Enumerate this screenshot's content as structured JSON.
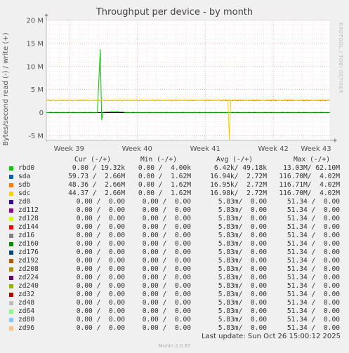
{
  "chart_data": {
    "type": "line",
    "title": "Throughput per device - by month",
    "ylabel": "Bytes/second read (-) / write (+)",
    "ylim": [
      -6000000,
      20000000
    ],
    "y_ticks": [
      "20 M",
      "15 M",
      "10 M",
      "5 M",
      "0",
      "-5 M"
    ],
    "y_tick_values": [
      20000000,
      15000000,
      10000000,
      5000000,
      0,
      -5000000
    ],
    "x_ticks": [
      "Week 39",
      "Week 40",
      "Week 41",
      "Week 42",
      "Week 43"
    ],
    "x_tick_positions": [
      0.08,
      0.32,
      0.56,
      0.8,
      1.04
    ],
    "series": [
      {
        "name": "rbd0",
        "color": "#00cc00",
        "profile": [
          [
            0.0,
            50000.0
          ],
          [
            0.18,
            50000.0
          ],
          [
            0.19,
            13800000.0
          ],
          [
            0.195,
            -1600000.0
          ],
          [
            0.2,
            100000.0
          ],
          [
            0.25,
            300000.0
          ],
          [
            0.28,
            50000.0
          ],
          [
            1.0,
            50000.0
          ]
        ]
      },
      {
        "name": "sda",
        "color": "#0066b3",
        "profile": [
          [
            0.0,
            2660000.0
          ],
          [
            1.0,
            2660000.0
          ]
        ]
      },
      {
        "name": "sdb",
        "color": "#ff8000",
        "profile": [
          [
            0.0,
            2660000.0
          ],
          [
            1.0,
            2660000.0
          ]
        ]
      },
      {
        "name": "sdc",
        "color": "#ffcc00",
        "profile": [
          [
            0.0,
            2660000.0
          ],
          [
            0.64,
            2660000.0
          ],
          [
            0.645,
            -5900000.0
          ],
          [
            0.65,
            2660000.0
          ],
          [
            1.0,
            2660000.0
          ]
        ]
      }
    ]
  },
  "side_label": "RRDTOOL / TOBI OETIKER",
  "legend": {
    "headers": {
      "cur": "Cur (-/+)",
      "min": "Min (-/+)",
      "avg": "Avg (-/+)",
      "max": "Max (-/+)"
    },
    "rows": [
      {
        "name": "rbd0",
        "color": "#00cc00",
        "cur": "0.00 / 19.32k",
        "min": "0.00 /  4.00k",
        "avg": "6.42k/ 49.18k",
        "max": "13.03M/ 62.10M"
      },
      {
        "name": "sda",
        "color": "#0066b3",
        "cur": "59.73 /  2.66M",
        "min": "0.00 /  1.62M",
        "avg": "16.94k/  2.72M",
        "max": "116.70M/  4.02M"
      },
      {
        "name": "sdb",
        "color": "#ff8000",
        "cur": "48.36 /  2.66M",
        "min": "0.00 /  1.62M",
        "avg": "16.95k/  2.72M",
        "max": "116.71M/  4.02M"
      },
      {
        "name": "sdc",
        "color": "#ffcc00",
        "cur": "44.37 /  2.66M",
        "min": "0.00 /  1.62M",
        "avg": "16.98k/  2.72M",
        "max": "116.70M/  4.02M"
      },
      {
        "name": "zd0",
        "color": "#330099",
        "cur": "0.00 /  0.00",
        "min": "0.00 /  0.00",
        "avg": "5.83m/  0.00",
        "max": "51.34 /  0.00"
      },
      {
        "name": "zd112",
        "color": "#990099",
        "cur": "0.00 /  0.00",
        "min": "0.00 /  0.00",
        "avg": "5.83m/  0.00",
        "max": "51.34 /  0.00"
      },
      {
        "name": "zd128",
        "color": "#ccff00",
        "cur": "0.00 /  0.00",
        "min": "0.00 /  0.00",
        "avg": "5.83m/  0.00",
        "max": "51.34 /  0.00"
      },
      {
        "name": "zd144",
        "color": "#ff0000",
        "cur": "0.00 /  0.00",
        "min": "0.00 /  0.00",
        "avg": "5.83m/  0.00",
        "max": "51.34 /  0.00"
      },
      {
        "name": "zd16",
        "color": "#808080",
        "cur": "0.00 /  0.00",
        "min": "0.00 /  0.00",
        "avg": "5.83m/  0.00",
        "max": "51.34 /  0.00"
      },
      {
        "name": "zd160",
        "color": "#008f00",
        "cur": "0.00 /  0.00",
        "min": "0.00 /  0.00",
        "avg": "5.83m/  0.00",
        "max": "51.34 /  0.00"
      },
      {
        "name": "zd176",
        "color": "#00487d",
        "cur": "0.00 /  0.00",
        "min": "0.00 /  0.00",
        "avg": "5.83m/  0.00",
        "max": "51.34 /  0.00"
      },
      {
        "name": "zd192",
        "color": "#b35a00",
        "cur": "0.00 /  0.00",
        "min": "0.00 /  0.00",
        "avg": "5.83m/  0.00",
        "max": "51.34 /  0.00"
      },
      {
        "name": "zd208",
        "color": "#b38f00",
        "cur": "0.00 /  0.00",
        "min": "0.00 /  0.00",
        "avg": "5.83m/  0.00",
        "max": "51.34 /  0.00"
      },
      {
        "name": "zd224",
        "color": "#6b006b",
        "cur": "0.00 /  0.00",
        "min": "0.00 /  0.00",
        "avg": "5.83m/  0.00",
        "max": "51.34 /  0.00"
      },
      {
        "name": "zd240",
        "color": "#8fb300",
        "cur": "0.00 /  0.00",
        "min": "0.00 /  0.00",
        "avg": "5.83m/  0.00",
        "max": "51.34 /  0.00"
      },
      {
        "name": "zd32",
        "color": "#b30000",
        "cur": "0.00 /  0.00",
        "min": "0.00 /  0.00",
        "avg": "5.83m/  0.00",
        "max": "51.34 /  0.00"
      },
      {
        "name": "zd48",
        "color": "#bebebe",
        "cur": "0.00 /  0.00",
        "min": "0.00 /  0.00",
        "avg": "5.83m/  0.00",
        "max": "51.34 /  0.00"
      },
      {
        "name": "zd64",
        "color": "#80ff80",
        "cur": "0.00 /  0.00",
        "min": "0.00 /  0.00",
        "avg": "5.83m/  0.00",
        "max": "51.34 /  0.00"
      },
      {
        "name": "zd80",
        "color": "#80c9ff",
        "cur": "0.00 /  0.00",
        "min": "0.00 /  0.00",
        "avg": "5.83m/  0.00",
        "max": "51.34 /  0.00"
      },
      {
        "name": "zd96",
        "color": "#ffc080",
        "cur": "0.00 /  0.00",
        "min": "0.00 /  0.00",
        "avg": "5.83m/  0.00",
        "max": "51.34 /  0.00"
      }
    ]
  },
  "footer": "Last update: Sun Oct 26 15:00:12 2025",
  "version": "Munin 2.0.67"
}
